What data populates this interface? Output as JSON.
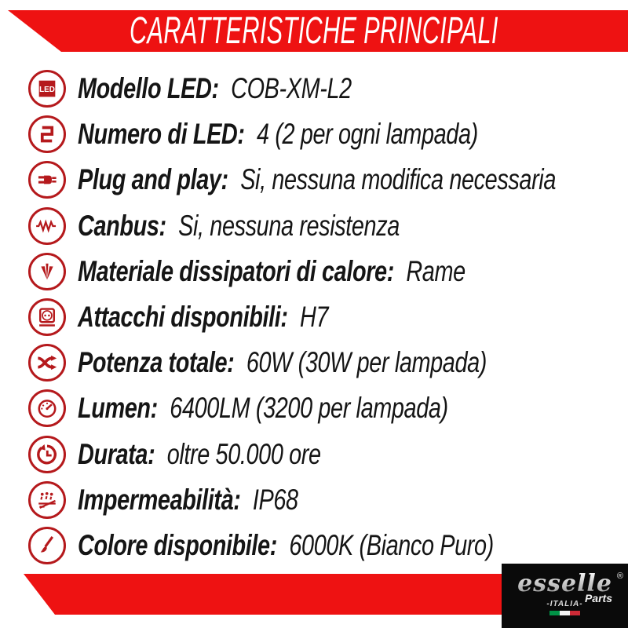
{
  "header": {
    "title": "CARATTERISTICHE PRINCIPALI"
  },
  "specs": [
    {
      "icon": "led-icon",
      "label": "Modello LED:",
      "value": "COB-XM-L2"
    },
    {
      "icon": "led-count-icon",
      "label": "Numero di LED:",
      "value": "4 (2 per ogni lampada)"
    },
    {
      "icon": "plug-icon",
      "label": "Plug and play:",
      "value": "Si, nessuna modifica necessaria"
    },
    {
      "icon": "canbus-resistor-icon",
      "label": "Canbus:",
      "value": "Si, nessuna resistenza"
    },
    {
      "icon": "heatsink-icon",
      "label": "Materiale dissipatori di calore:",
      "value": "Rame"
    },
    {
      "icon": "socket-icon",
      "label": "Attacchi disponibili:",
      "value": "H7"
    },
    {
      "icon": "shuffle-arrows-icon",
      "label": "Potenza totale:",
      "value": "60W (30W per lampada)"
    },
    {
      "icon": "gauge-icon",
      "label": "Lumen:",
      "value": "6400LM (3200 per lampada)"
    },
    {
      "icon": "clock-history-icon",
      "label": "Durata:",
      "value": "oltre 50.000 ore"
    },
    {
      "icon": "water-drops-icon",
      "label": "Impermeabilità:",
      "value": "IP68"
    },
    {
      "icon": "paintbrush-icon",
      "label": "Colore disponibile:",
      "value": "6000K (Bianco Puro)"
    }
  ],
  "footer_logo": {
    "brand": "esselle",
    "registered": "®",
    "parts": "Parts",
    "country": "-ITALIA-"
  },
  "colors": {
    "band_red": "#ee1212",
    "icon_red": "#b5191c",
    "text_black": "#151515",
    "flag_green": "#009246",
    "flag_white": "#f4f4f4",
    "flag_red": "#ce2b37"
  }
}
